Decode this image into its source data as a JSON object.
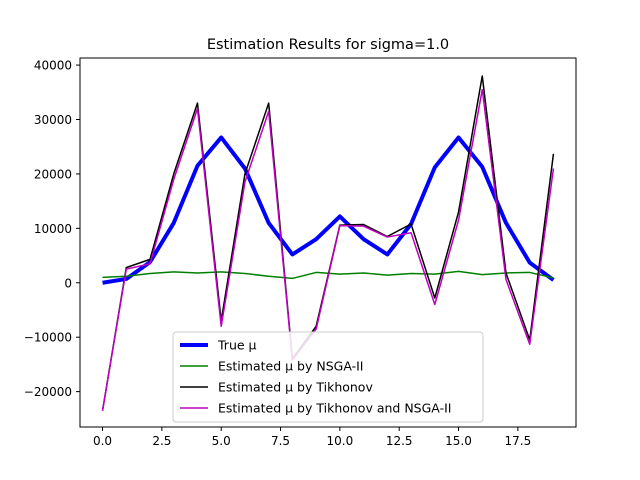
{
  "chart_data": {
    "type": "line",
    "title": "Estimation Results for sigma=1.0",
    "xlabel": "",
    "ylabel": "",
    "xlim": [
      -0.95,
      19.95
    ],
    "ylim": [
      -26500,
      41300
    ],
    "x_ticks": [
      0.0,
      2.5,
      5.0,
      7.5,
      10.0,
      12.5,
      15.0,
      17.5
    ],
    "x_tick_labels": [
      "0.0",
      "2.5",
      "5.0",
      "7.5",
      "10.0",
      "12.5",
      "15.0",
      "17.5"
    ],
    "y_ticks": [
      -20000,
      -10000,
      0,
      10000,
      20000,
      30000,
      40000
    ],
    "y_tick_labels": [
      "−20000",
      "−10000",
      "0",
      "10000",
      "20000",
      "30000",
      "40000"
    ],
    "grid": false,
    "legend_position": "lower center",
    "x": [
      0,
      1,
      2,
      3,
      4,
      5,
      6,
      7,
      8,
      9,
      10,
      11,
      12,
      13,
      14,
      15,
      16,
      17,
      18,
      19
    ],
    "series": [
      {
        "name": "True μ",
        "color": "#0000ff",
        "width": 4,
        "values": [
          0,
          700,
          3800,
          11000,
          21500,
          26700,
          21000,
          11000,
          5200,
          8000,
          12200,
          8000,
          5200,
          10800,
          21200,
          26700,
          21300,
          11000,
          3700,
          500
        ]
      },
      {
        "name": "Estimated μ by NSGA-II",
        "color": "#008000",
        "width": 1.5,
        "values": [
          1000,
          1200,
          1700,
          2000,
          1800,
          2000,
          1700,
          1200,
          800,
          1900,
          1600,
          1800,
          1400,
          1700,
          1600,
          2100,
          1500,
          1800,
          1900,
          900
        ]
      },
      {
        "name": "Estimated μ by Tikhonov",
        "color": "#000000",
        "width": 1.5,
        "values": [
          -23500,
          2800,
          4300,
          20000,
          33000,
          -7000,
          20000,
          33000,
          -14000,
          -8000,
          10600,
          10700,
          8500,
          10800,
          -2800,
          13000,
          38000,
          1800,
          -10500,
          23700
        ]
      },
      {
        "name": "Estimated μ by Tikhonov and NSGA-II",
        "color": "#bf00bf",
        "width": 1.5,
        "values": [
          -23500,
          2500,
          3500,
          19000,
          32000,
          -8000,
          18500,
          31500,
          -14200,
          -8500,
          10500,
          10400,
          8400,
          9200,
          -4000,
          11500,
          35500,
          600,
          -11300,
          21000
        ]
      }
    ]
  }
}
